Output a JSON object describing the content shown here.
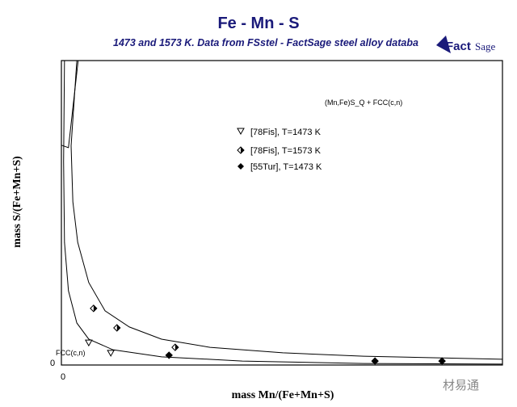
{
  "chart_data": {
    "type": "scatter",
    "title": "Fe - Mn - S",
    "subtitle": "1473 and 1573 K.  Data from FSstel - FactSage steel alloy databa",
    "xlabel": "mass Mn/(Fe+Mn+S)",
    "ylabel": "mass S/(Fe+Mn+S)",
    "x_tick_labels": [
      "0"
    ],
    "y_tick_labels": [
      "0"
    ],
    "xlim": [
      0,
      1
    ],
    "ylim": [
      0,
      1
    ],
    "grid": false,
    "legend_placement": "center-top",
    "region_labels": {
      "upper": "(Mn,Fe)S_Q + FCC(c,n)",
      "lower": "FCC(c,n)"
    },
    "series": [
      {
        "name": "[78Fis], T=1473 K",
        "marker": "open-triangle-down",
        "points": [
          [
            0.062,
            0.074
          ],
          [
            0.112,
            0.04
          ]
        ]
      },
      {
        "name": "[78Fis], T=1573 K",
        "marker": "half-filled-diamond",
        "points": [
          [
            0.073,
            0.186
          ],
          [
            0.126,
            0.122
          ],
          [
            0.258,
            0.058
          ]
        ]
      },
      {
        "name": "[55Tur], T=1473 K",
        "marker": "filled-diamond",
        "points": [
          [
            0.244,
            0.032
          ],
          [
            0.711,
            0.013
          ],
          [
            0.863,
            0.013
          ]
        ]
      }
    ],
    "curves": [
      [
        [
          0.035,
          1
        ],
        [
          0.022,
          0.72
        ],
        [
          0.026,
          0.536
        ],
        [
          0.037,
          0.403
        ],
        [
          0.062,
          0.271
        ],
        [
          0.099,
          0.178
        ],
        [
          0.154,
          0.125
        ],
        [
          0.227,
          0.085
        ],
        [
          0.337,
          0.058
        ],
        [
          0.502,
          0.04
        ],
        [
          0.685,
          0.029
        ],
        [
          1,
          0.019
        ]
      ],
      [
        [
          0.007,
          1
        ],
        [
          0.005,
          0.668
        ],
        [
          0.007,
          0.403
        ],
        [
          0.016,
          0.244
        ],
        [
          0.035,
          0.138
        ],
        [
          0.062,
          0.085
        ],
        [
          0.117,
          0.05
        ],
        [
          0.227,
          0.027
        ],
        [
          0.41,
          0.013
        ],
        [
          0.685,
          0.005
        ],
        [
          1,
          0.003
        ]
      ],
      [
        [
          0.038,
          1
        ],
        [
          0.016,
          0.714
        ],
        [
          0,
          0.722
        ]
      ]
    ]
  },
  "logo_text": "FactSage",
  "watermark": "材易通",
  "colors": {
    "title": "#1a1a7a",
    "line": "#000000"
  }
}
